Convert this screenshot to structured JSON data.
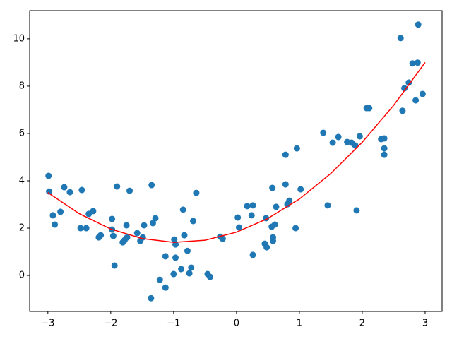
{
  "chart_data": {
    "type": "scatter",
    "xlim": [
      -3.29,
      3.27
    ],
    "ylim": [
      -1.52,
      11.19
    ],
    "xticks": [
      {
        "value": -3,
        "label": "−3"
      },
      {
        "value": -2,
        "label": "−2"
      },
      {
        "value": -1,
        "label": "−1"
      },
      0,
      1,
      2,
      3
    ],
    "yticks": [
      0,
      2,
      4,
      6,
      8,
      10
    ],
    "series": [
      {
        "type": "scatter",
        "color": "#1f77b4",
        "x": [
          -2.99,
          -2.98,
          -2.92,
          -2.89,
          -2.8,
          -2.74,
          -2.65,
          -2.48,
          -2.46,
          -2.39,
          -2.35,
          -2.28,
          -2.19,
          -2.16,
          -1.98,
          -1.98,
          -1.96,
          -1.94,
          -1.9,
          -1.81,
          -1.78,
          -1.75,
          -1.74,
          -1.7,
          -1.58,
          -1.53,
          -1.49,
          -1.47,
          -1.36,
          -1.35,
          -1.33,
          -1.29,
          -1.22,
          -1.13,
          -1.13,
          -1.0,
          -0.99,
          -0.97,
          -0.97,
          -0.88,
          -0.85,
          -0.83,
          -0.78,
          -0.75,
          -0.72,
          -0.69,
          -0.64,
          -0.46,
          -0.42,
          -0.26,
          -0.22,
          0.02,
          0.04,
          0.17,
          0.24,
          0.26,
          0.26,
          0.45,
          0.47,
          0.48,
          0.56,
          0.57,
          0.58,
          0.58,
          0.61,
          0.63,
          0.78,
          0.78,
          0.81,
          0.84,
          0.94,
          0.96,
          1.02,
          1.38,
          1.45,
          1.53,
          1.62,
          1.76,
          1.83,
          1.89,
          1.91,
          1.96,
          2.07,
          2.11,
          2.3,
          2.35,
          2.35,
          2.35,
          2.61,
          2.64,
          2.67,
          2.74,
          2.8,
          2.85,
          2.88,
          2.89,
          2.96
        ],
        "values": [
          4.21,
          3.55,
          2.54,
          2.15,
          2.69,
          3.73,
          3.52,
          2.0,
          3.61,
          2.0,
          2.6,
          2.72,
          1.61,
          1.7,
          2.39,
          1.94,
          1.67,
          0.42,
          3.76,
          1.4,
          1.49,
          2.12,
          1.61,
          3.58,
          1.79,
          1.46,
          1.61,
          2.12,
          -0.96,
          3.82,
          2.21,
          2.42,
          -0.18,
          0.81,
          -0.51,
          0.06,
          1.52,
          1.31,
          0.75,
          0.27,
          2.78,
          1.7,
          1.04,
          0.09,
          0.33,
          2.3,
          3.49,
          0.06,
          -0.06,
          1.64,
          1.55,
          2.45,
          2.03,
          2.93,
          2.54,
          2.96,
          0.87,
          1.34,
          2.42,
          1.19,
          2.06,
          3.7,
          1.46,
          1.61,
          2.15,
          2.9,
          5.1,
          3.85,
          3.01,
          3.16,
          2.0,
          5.37,
          3.64,
          6.03,
          2.96,
          5.61,
          5.85,
          5.64,
          5.61,
          5.49,
          2.75,
          5.88,
          7.07,
          7.07,
          5.76,
          5.79,
          5.37,
          5.1,
          10.03,
          6.96,
          7.91,
          8.15,
          8.96,
          7.4,
          8.99,
          10.6,
          7.67
        ]
      },
      {
        "type": "line",
        "color": "#ff0000",
        "x": [
          -3,
          -2.5,
          -2,
          -1.5,
          -1,
          -0.5,
          0,
          0.5,
          1,
          1.5,
          2,
          2.5,
          3
        ],
        "values": [
          3.5,
          2.61,
          1.96,
          1.56,
          1.4,
          1.49,
          1.83,
          2.41,
          3.23,
          4.31,
          5.63,
          7.19,
          9.0
        ]
      }
    ]
  }
}
